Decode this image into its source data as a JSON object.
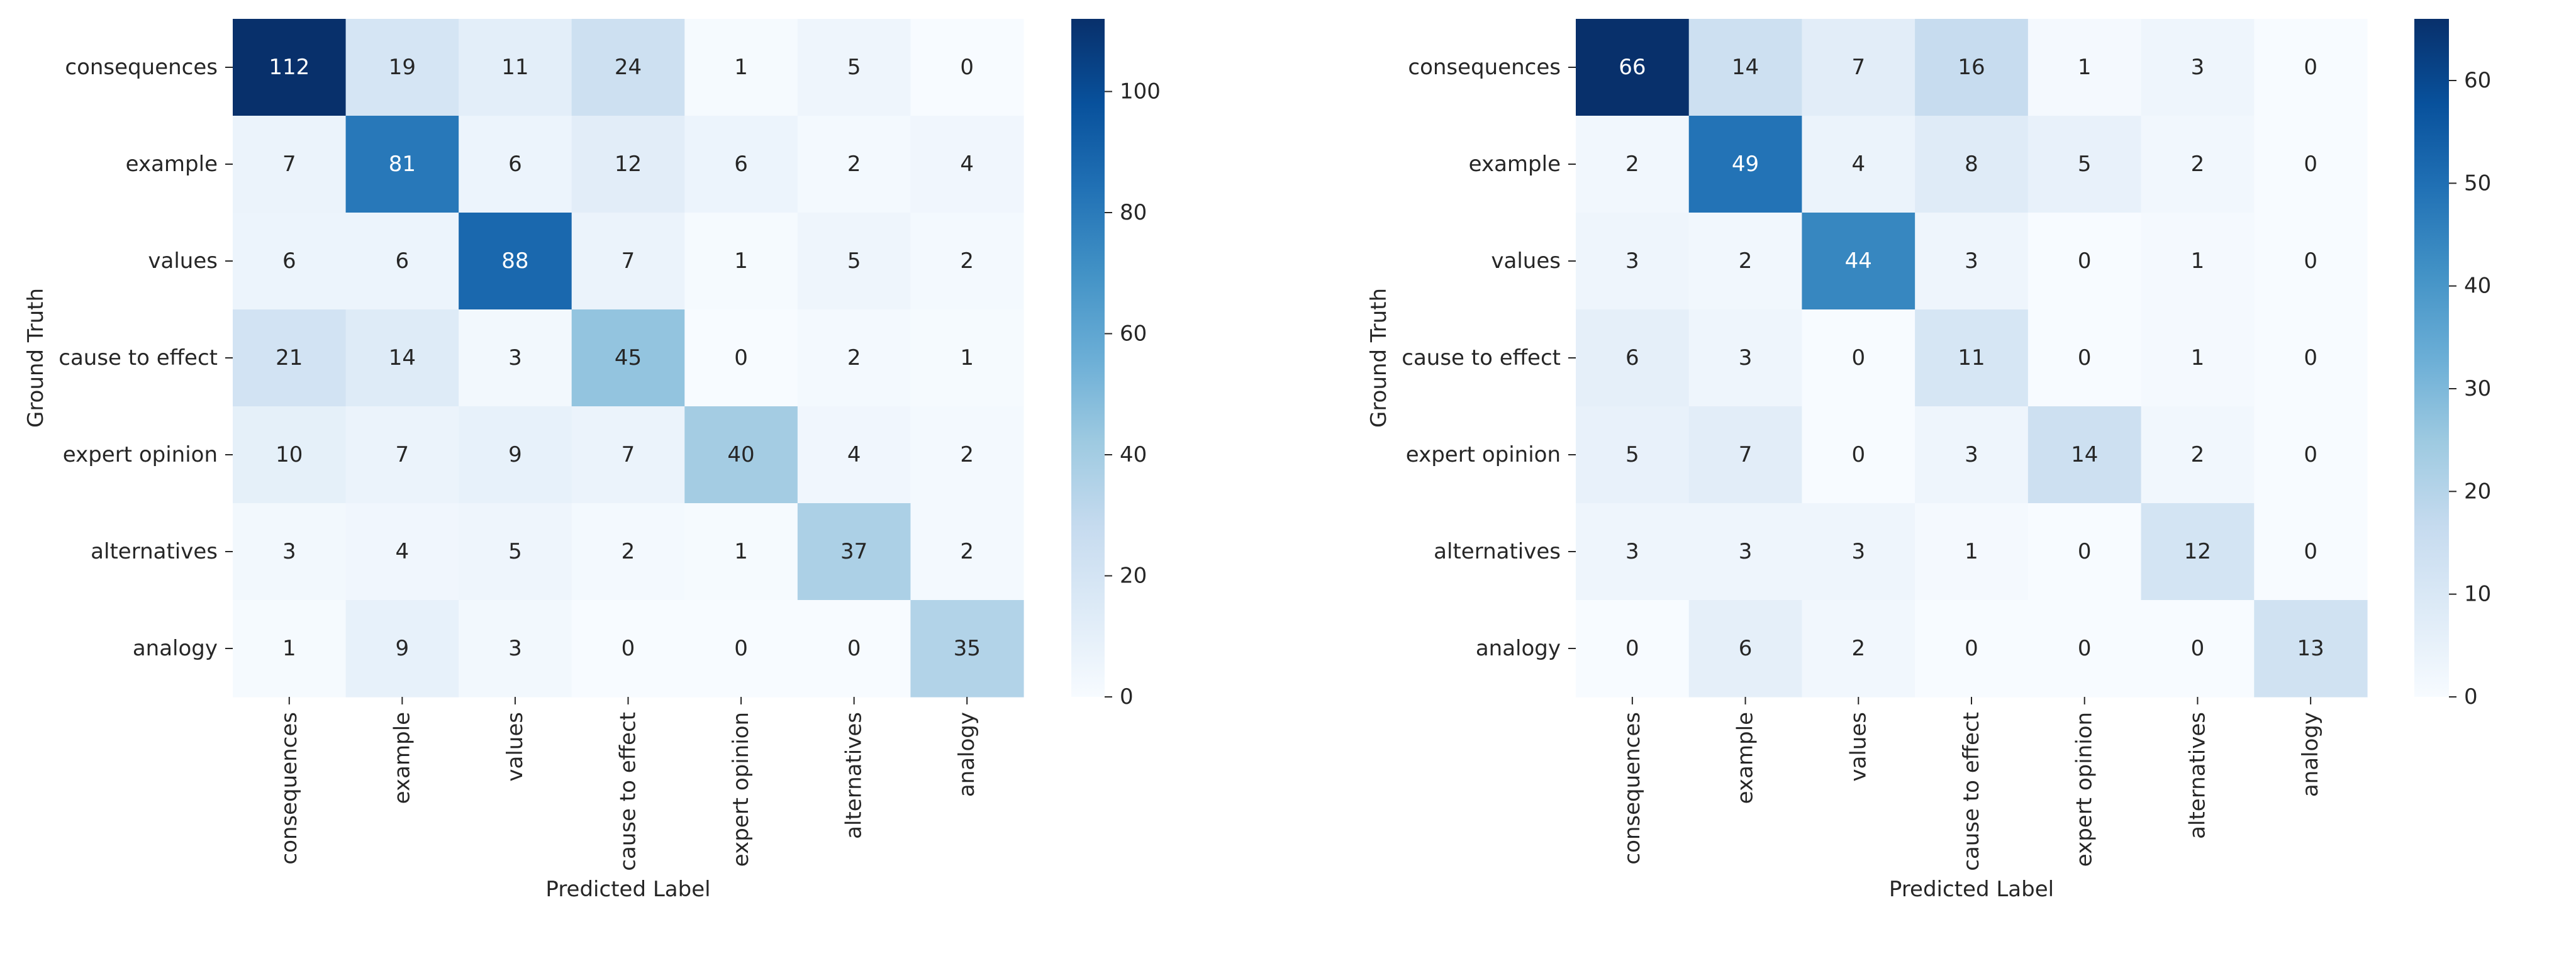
{
  "chart_data": [
    {
      "type": "heatmap",
      "title": "",
      "xlabel": "Predicted Label",
      "ylabel": "Ground Truth",
      "x_categories": [
        "consequences",
        "example",
        "values",
        "cause to effect",
        "expert opinion",
        "alternatives",
        "analogy"
      ],
      "y_categories": [
        "consequences",
        "example",
        "values",
        "cause to effect",
        "expert opinion",
        "alternatives",
        "analogy"
      ],
      "values": [
        [
          112,
          19,
          11,
          24,
          1,
          5,
          0
        ],
        [
          7,
          81,
          6,
          12,
          6,
          2,
          4
        ],
        [
          6,
          6,
          88,
          7,
          1,
          5,
          2
        ],
        [
          21,
          14,
          3,
          45,
          0,
          2,
          1
        ],
        [
          10,
          7,
          9,
          7,
          40,
          4,
          2
        ],
        [
          3,
          4,
          5,
          2,
          1,
          37,
          2
        ],
        [
          1,
          9,
          3,
          0,
          0,
          0,
          35
        ]
      ],
      "colormap": "Blues",
      "colorbar": {
        "range": [
          0,
          112
        ],
        "ticks": [
          0,
          20,
          40,
          60,
          80,
          100
        ]
      },
      "annotations": true,
      "grid": false
    },
    {
      "type": "heatmap",
      "title": "",
      "xlabel": "Predicted Label",
      "ylabel": "Ground Truth",
      "x_categories": [
        "consequences",
        "example",
        "values",
        "cause to effect",
        "expert opinion",
        "alternatives",
        "analogy"
      ],
      "y_categories": [
        "consequences",
        "example",
        "values",
        "cause to effect",
        "expert opinion",
        "alternatives",
        "analogy"
      ],
      "values": [
        [
          66,
          14,
          7,
          16,
          1,
          3,
          0
        ],
        [
          2,
          49,
          4,
          8,
          5,
          2,
          0
        ],
        [
          3,
          2,
          44,
          3,
          0,
          1,
          0
        ],
        [
          6,
          3,
          0,
          11,
          0,
          1,
          0
        ],
        [
          5,
          7,
          0,
          3,
          14,
          2,
          0
        ],
        [
          3,
          3,
          3,
          1,
          0,
          12,
          0
        ],
        [
          0,
          6,
          2,
          0,
          0,
          0,
          13
        ]
      ],
      "colormap": "Blues",
      "colorbar": {
        "range": [
          0,
          66
        ],
        "ticks": [
          0,
          10,
          20,
          30,
          40,
          50,
          60
        ]
      },
      "annotations": true,
      "grid": false
    }
  ],
  "colors": {
    "text_dark": "#262626",
    "text_light": "#ffffff",
    "blues_stops": [
      "#f7fbff",
      "#deebf7",
      "#c6dbef",
      "#9ecae1",
      "#6baed6",
      "#4292c6",
      "#2171b5",
      "#08519c",
      "#08306b"
    ]
  }
}
